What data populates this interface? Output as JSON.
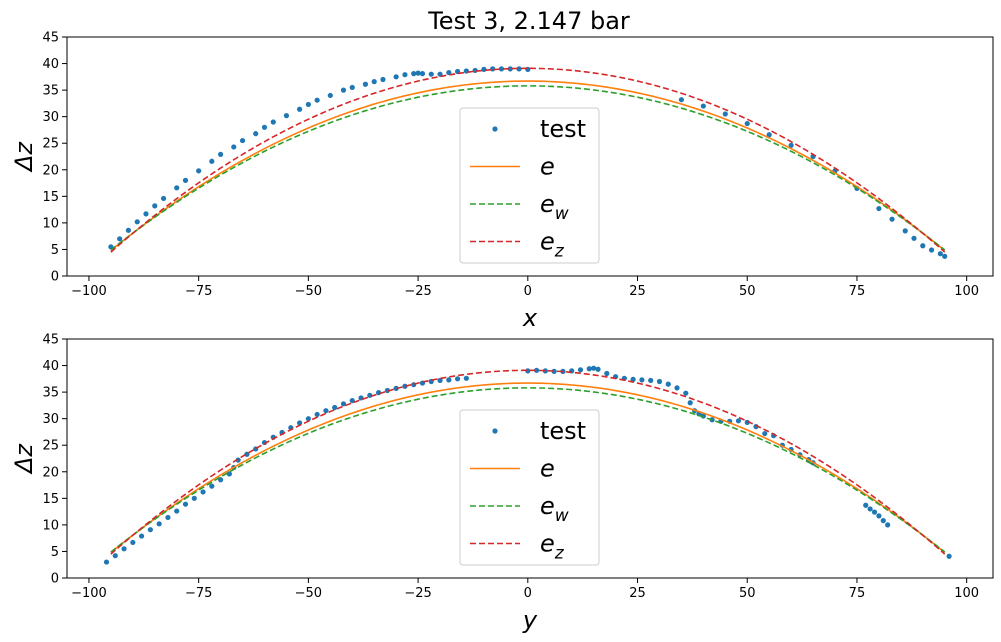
{
  "title": "Test 3, 2.147 bar",
  "legend": {
    "entries": [
      {
        "key": "test",
        "label": "test",
        "kind": "marker",
        "color": "#1f77b4"
      },
      {
        "key": "e",
        "label": "e",
        "sub": "",
        "kind": "solid",
        "color": "#ff7f0e"
      },
      {
        "key": "ew",
        "label": "e",
        "sub": "w",
        "kind": "dashed",
        "color": "#2ca02c"
      },
      {
        "key": "ez",
        "label": "e",
        "sub": "z",
        "kind": "dashed",
        "color": "#d62728"
      }
    ]
  },
  "chart_data": [
    {
      "type": "line",
      "xlabel": "x",
      "ylabel": "Δz",
      "xlim": [
        -105,
        106
      ],
      "ylim": [
        0,
        45
      ],
      "xticks": [
        -100,
        -75,
        -50,
        -25,
        0,
        25,
        50,
        75,
        100
      ],
      "yticks": [
        0,
        5,
        10,
        15,
        20,
        25,
        30,
        35,
        40,
        45
      ],
      "legend_position": "lower-center",
      "series": [
        {
          "name": "test",
          "style": "scatter",
          "color": "#1f77b4",
          "x": [
            -95,
            -93,
            -91,
            -89,
            -87,
            -85,
            -83,
            -80,
            -78,
            -75,
            -72,
            -70,
            -67,
            -65,
            -62,
            -60,
            -58,
            -55,
            -52,
            -50,
            -48,
            -45,
            -42,
            -40,
            -37,
            -35,
            -33,
            -30,
            -28,
            -26,
            -25,
            -24,
            -22,
            -20,
            -18,
            -16,
            -14,
            -12,
            -10,
            -8,
            -6,
            -4,
            -2,
            0,
            35,
            40,
            45,
            50,
            55,
            60,
            65,
            70,
            75,
            80,
            83,
            86,
            88,
            90,
            92,
            94,
            95
          ],
          "y": [
            5.5,
            7.0,
            8.6,
            10.2,
            11.7,
            13.2,
            14.6,
            16.6,
            18.0,
            19.8,
            21.6,
            22.9,
            24.3,
            25.5,
            26.8,
            28.0,
            29.0,
            30.2,
            31.4,
            32.3,
            33.1,
            34.0,
            35.0,
            35.5,
            36.1,
            36.6,
            37.0,
            37.5,
            37.9,
            38.1,
            38.2,
            38.1,
            38.0,
            38.0,
            38.3,
            38.5,
            38.6,
            38.7,
            38.9,
            39.0,
            39.0,
            39.0,
            39.0,
            38.9,
            33.2,
            32.0,
            30.5,
            28.7,
            26.6,
            24.6,
            22.5,
            19.8,
            16.5,
            12.7,
            10.7,
            8.5,
            7.1,
            5.7,
            4.9,
            4.2,
            3.7
          ]
        },
        {
          "name": "e",
          "style": "solid",
          "color": "#ff7f0e",
          "apex": 36.7,
          "edge": 4.8,
          "span": 95
        },
        {
          "name": "e_w",
          "style": "dashed",
          "color": "#2ca02c",
          "apex": 35.8,
          "edge": 4.9,
          "span": 95
        },
        {
          "name": "e_z",
          "style": "dashed",
          "color": "#d62728",
          "apex": 39.1,
          "edge": 4.5,
          "span": 95
        }
      ]
    },
    {
      "type": "line",
      "xlabel": "y",
      "ylabel": "Δz",
      "xlim": [
        -105,
        106
      ],
      "ylim": [
        0,
        45
      ],
      "xticks": [
        -100,
        -75,
        -50,
        -25,
        0,
        25,
        50,
        75,
        100
      ],
      "yticks": [
        0,
        5,
        10,
        15,
        20,
        25,
        30,
        35,
        40,
        45
      ],
      "legend_position": "lower-center",
      "series": [
        {
          "name": "test",
          "style": "scatter",
          "color": "#1f77b4",
          "x": [
            -96,
            -94,
            -92,
            -90,
            -88,
            -86,
            -84,
            -82,
            -80,
            -78,
            -76,
            -74,
            -72,
            -70,
            -68,
            -67,
            -66,
            -64,
            -62,
            -60,
            -58,
            -56,
            -54,
            -52,
            -50,
            -48,
            -46,
            -44,
            -42,
            -40,
            -38,
            -36,
            -34,
            -32,
            -30,
            -28,
            -26,
            -24,
            -22,
            -20,
            -18,
            -16,
            -14,
            0,
            2,
            4,
            6,
            8,
            10,
            12,
            14,
            15,
            16,
            18,
            20,
            22,
            24,
            26,
            28,
            30,
            32,
            34,
            36,
            37,
            38,
            39,
            40,
            42,
            44,
            46,
            48,
            50,
            52,
            54,
            56,
            58,
            60,
            62,
            64,
            65,
            77,
            78,
            79,
            80,
            81,
            82,
            96
          ],
          "y": [
            3.0,
            4.2,
            5.5,
            6.7,
            7.9,
            9.1,
            10.2,
            11.4,
            12.6,
            13.9,
            15.0,
            16.2,
            17.3,
            18.5,
            19.6,
            20.8,
            22.2,
            23.3,
            24.3,
            25.5,
            26.5,
            27.4,
            28.3,
            29.2,
            30.0,
            30.8,
            31.5,
            32.1,
            32.8,
            33.4,
            33.9,
            34.4,
            34.9,
            35.3,
            35.7,
            36.1,
            36.4,
            36.7,
            37.0,
            37.2,
            37.3,
            37.5,
            37.6,
            39.0,
            39.1,
            39.0,
            38.9,
            38.9,
            39.0,
            39.2,
            39.4,
            39.5,
            39.3,
            38.5,
            37.9,
            37.6,
            37.4,
            37.3,
            37.2,
            37.0,
            36.5,
            35.8,
            34.8,
            33.0,
            31.5,
            30.9,
            30.5,
            29.8,
            29.5,
            29.5,
            29.6,
            29.3,
            28.5,
            27.2,
            26.8,
            25.0,
            24.2,
            23.2,
            22.3,
            21.7,
            13.7,
            13.0,
            12.4,
            11.7,
            10.8,
            10.0,
            4.1
          ]
        },
        {
          "name": "e",
          "style": "solid",
          "color": "#ff7f0e",
          "apex": 36.7,
          "edge": 4.8,
          "span": 95
        },
        {
          "name": "e_w",
          "style": "dashed",
          "color": "#2ca02c",
          "apex": 35.8,
          "edge": 4.9,
          "span": 95
        },
        {
          "name": "e_z",
          "style": "dashed",
          "color": "#d62728",
          "apex": 39.1,
          "edge": 4.5,
          "span": 95
        }
      ]
    }
  ]
}
